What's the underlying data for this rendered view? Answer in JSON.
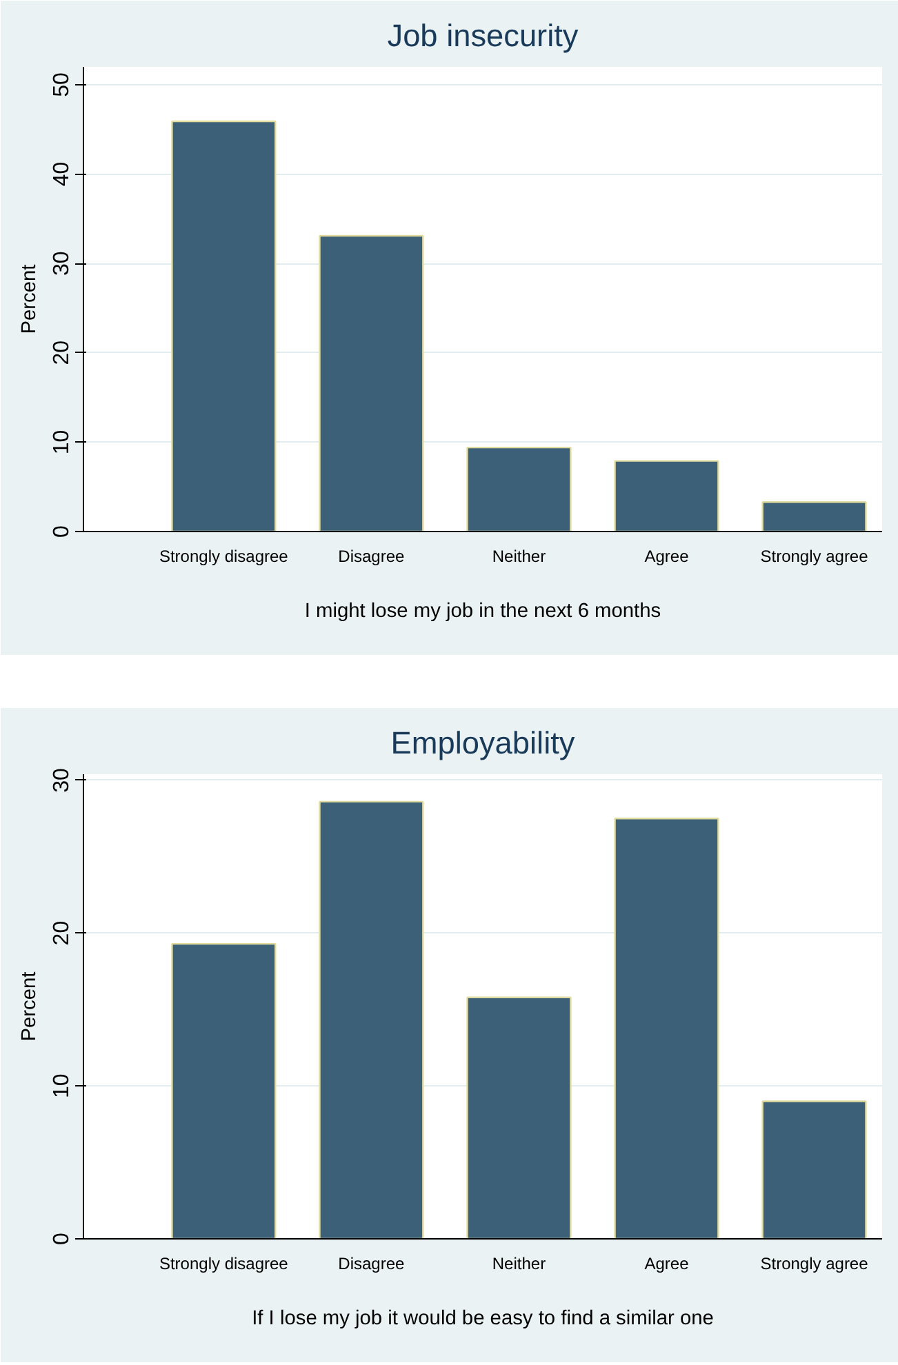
{
  "chart_data": [
    {
      "type": "bar",
      "title": "Job insecurity",
      "xlabel": "I might lose my job in the next 6 months",
      "ylabel": "Percent",
      "categories": [
        "Strongly disagree",
        "Disagree",
        "Neither",
        "Agree",
        "Strongly agree"
      ],
      "values": [
        45.9,
        33.1,
        9.4,
        7.9,
        3.3
      ],
      "color": "#3d6079",
      "ylim": [
        0,
        52
      ],
      "yticks": [
        0,
        10,
        20,
        30,
        40,
        50
      ],
      "grid": "y"
    },
    {
      "type": "bar",
      "title": "Employability",
      "xlabel": "If I lose my job it would be easy to find a similar one",
      "ylabel": "Percent",
      "categories": [
        "Strongly disagree",
        "Disagree",
        "Neither",
        "Agree",
        "Strongly agree"
      ],
      "values": [
        19.3,
        28.6,
        15.8,
        27.5,
        9.0
      ],
      "color": "#3d6079",
      "ylim": [
        0,
        30.4
      ],
      "yticks": [
        0,
        10,
        20,
        30
      ],
      "grid": "y"
    }
  ]
}
